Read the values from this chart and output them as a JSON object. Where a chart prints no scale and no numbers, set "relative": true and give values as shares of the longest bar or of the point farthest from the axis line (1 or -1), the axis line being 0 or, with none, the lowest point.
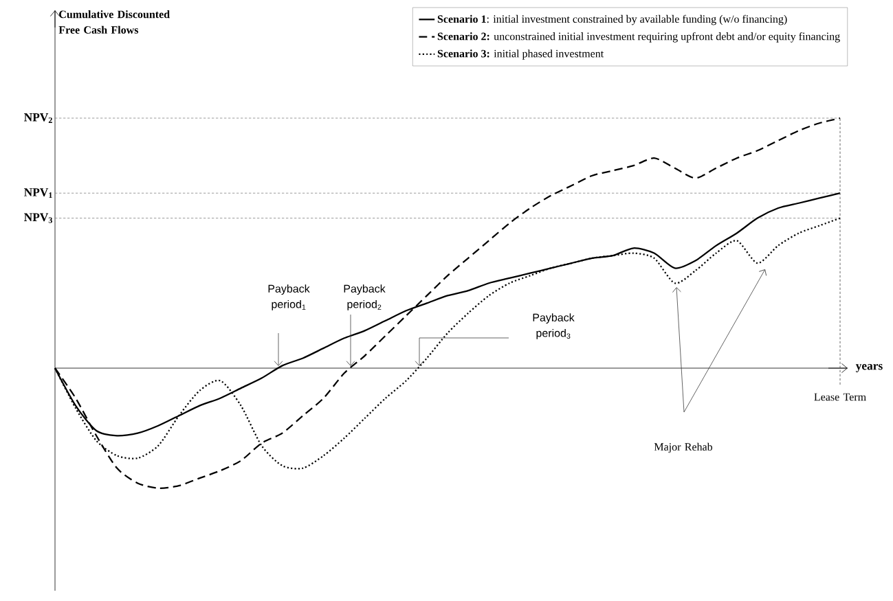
{
  "chart_data": {
    "type": "line",
    "relative": true,
    "xlabel": "years",
    "categories": [
      null,
      null,
      null,
      null,
      null,
      null,
      null,
      null,
      null,
      null,
      null,
      null,
      null,
      null,
      null,
      null,
      null,
      null,
      null,
      null,
      null,
      null,
      null,
      null,
      null,
      null,
      null,
      null,
      null,
      null,
      null,
      null,
      null,
      null,
      null,
      null,
      null,
      null,
      null
    ],
    "series": [
      {
        "name": "**Scenario 1**: initial investment constrained by available funding (w/o financing)",
        "color": "#000000",
        "line_style": "solid",
        "values": [
          0,
          -0.15,
          -0.25,
          -0.27,
          -0.26,
          -0.23,
          -0.19,
          -0.15,
          -0.12,
          -0.08,
          -0.04,
          0.01,
          0.04,
          0.08,
          0.12,
          0.15,
          0.19,
          0.23,
          0.26,
          0.29,
          0.31,
          0.34,
          0.36,
          0.38,
          0.4,
          0.42,
          0.44,
          0.45,
          0.48,
          0.46,
          0.4,
          0.43,
          0.49,
          0.54,
          0.6,
          0.64,
          0.66,
          0.68,
          0.7
        ]
      },
      {
        "name": "**Scenario 2:** unconstrained initial investment requiring upfront debt and/or equity financing",
        "color": "#000000",
        "line_style": "dashed",
        "values": [
          0,
          -0.12,
          -0.27,
          -0.4,
          -0.46,
          -0.48,
          -0.47,
          -0.44,
          -0.41,
          -0.37,
          -0.3,
          -0.26,
          -0.19,
          -0.12,
          -0.02,
          0.05,
          0.13,
          0.21,
          0.29,
          0.37,
          0.44,
          0.51,
          0.58,
          0.64,
          0.69,
          0.73,
          0.77,
          0.79,
          0.81,
          0.84,
          0.8,
          0.76,
          0.8,
          0.84,
          0.87,
          0.91,
          0.95,
          0.98,
          1
        ]
      },
      {
        "name": "**Scenario 3:** initial phased investment",
        "color": "#000000",
        "line_style": "dotted",
        "values": [
          0,
          -0.16,
          -0.29,
          -0.35,
          -0.36,
          -0.31,
          -0.19,
          -0.09,
          -0.05,
          -0.15,
          -0.31,
          -0.39,
          -0.4,
          -0.35,
          -0.28,
          -0.2,
          -0.12,
          -0.05,
          0.04,
          0.14,
          0.22,
          0.29,
          0.34,
          0.37,
          0.4,
          0.42,
          0.44,
          0.45,
          0.46,
          0.44,
          0.34,
          0.39,
          0.46,
          0.51,
          0.42,
          0.49,
          0.54,
          0.57,
          0.6
        ]
      }
    ],
    "ref_lines": [
      {
        "axis": "y",
        "value": 1,
        "label": "NPV$_{2}$",
        "color": "#808080",
        "line_style": "dashed"
      },
      {
        "axis": "y",
        "value": 0.7,
        "label": "NPV$_{1}$",
        "color": "#808080",
        "line_style": "dashed"
      },
      {
        "axis": "y",
        "value": 0.6,
        "label": "NPV$_{3}$",
        "color": "#808080",
        "line_style": "dashed"
      }
    ],
    "annotations": [
      "Cumulative Discounted Free Cash Flows",
      "Payback period$_{1}$",
      "Payback period$_{2}$",
      "Payback period$_{3}$",
      "Major Rehab",
      "Lease Term"
    ],
    "legend": "top right"
  }
}
